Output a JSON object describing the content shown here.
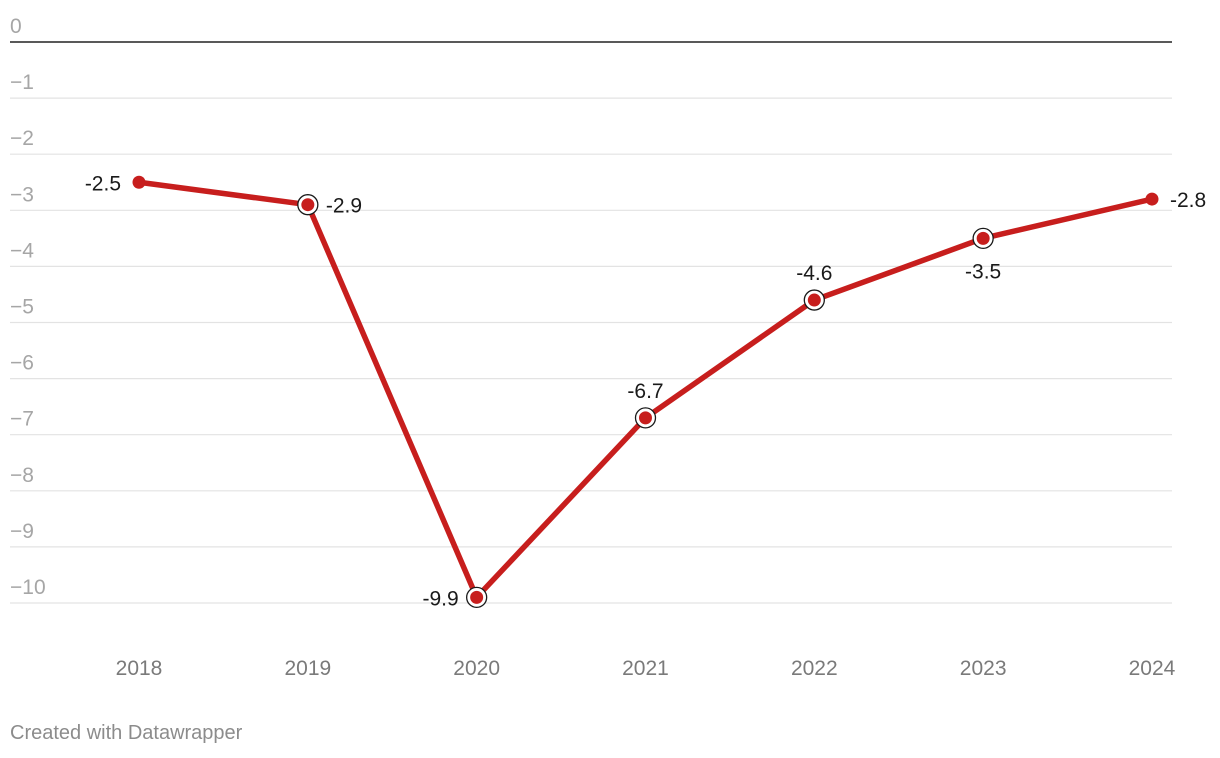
{
  "chart_data": {
    "type": "line",
    "x": [
      "2018",
      "2019",
      "2020",
      "2021",
      "2022",
      "2023",
      "2024"
    ],
    "series": [
      {
        "values": [
          -2.5,
          -2.9,
          -9.9,
          -6.7,
          -4.6,
          -3.5,
          -2.8
        ],
        "color": "#c71e1d"
      }
    ],
    "data_labels": [
      "-2.5",
      "-2.9",
      "-9.9",
      "-6.7",
      "-4.6",
      "-3.5",
      "-2.8"
    ],
    "ylim": [
      -10,
      0
    ],
    "yticks": [
      0,
      -1,
      -2,
      -3,
      -4,
      -5,
      -6,
      -7,
      -8,
      -9,
      -10
    ],
    "ytick_labels": [
      "0",
      "−1",
      "−2",
      "−3",
      "−4",
      "−5",
      "−6",
      "−7",
      "−8",
      "−9",
      "−10"
    ],
    "highlighted_points": [
      "2019",
      "2020",
      "2021",
      "2022",
      "2023"
    ],
    "grid": true,
    "title": "",
    "xlabel": "",
    "ylabel": ""
  },
  "footer": {
    "credit": "Created with Datawrapper"
  }
}
